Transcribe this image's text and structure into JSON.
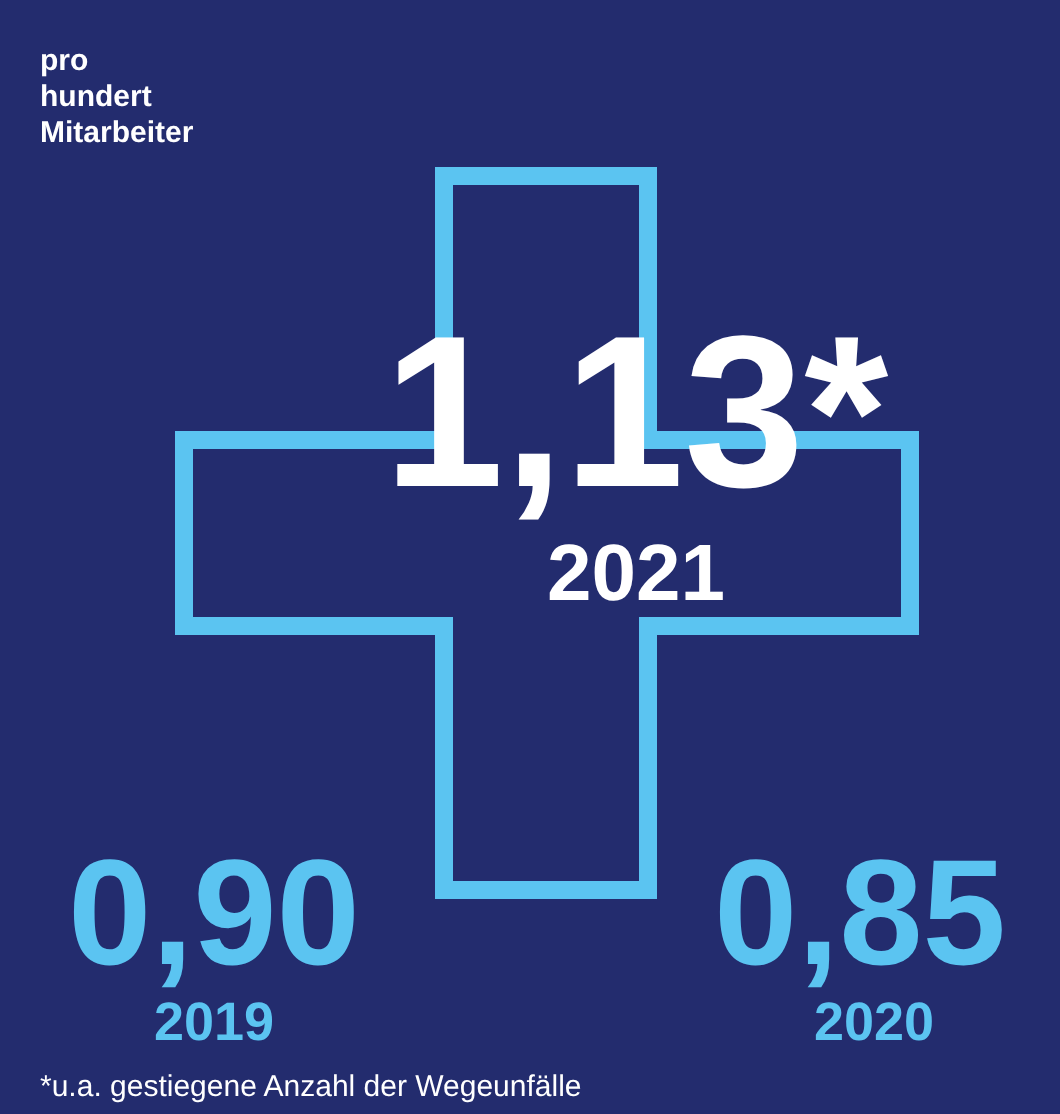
{
  "chart_data": {
    "type": "other",
    "title": "pro hundert Mitarbeiter",
    "categories": [
      "2019",
      "2020",
      "2021"
    ],
    "values": [
      0.9,
      0.85,
      1.13
    ],
    "value_labels": [
      "0,90",
      "0,85",
      "1,13*"
    ],
    "colors": [
      "#5bc4f1",
      "#5bc4f1",
      "#ffffff"
    ],
    "annotations": [
      "*u.a. gestiegene Anzahl der Wegeunfälle"
    ]
  }
}
